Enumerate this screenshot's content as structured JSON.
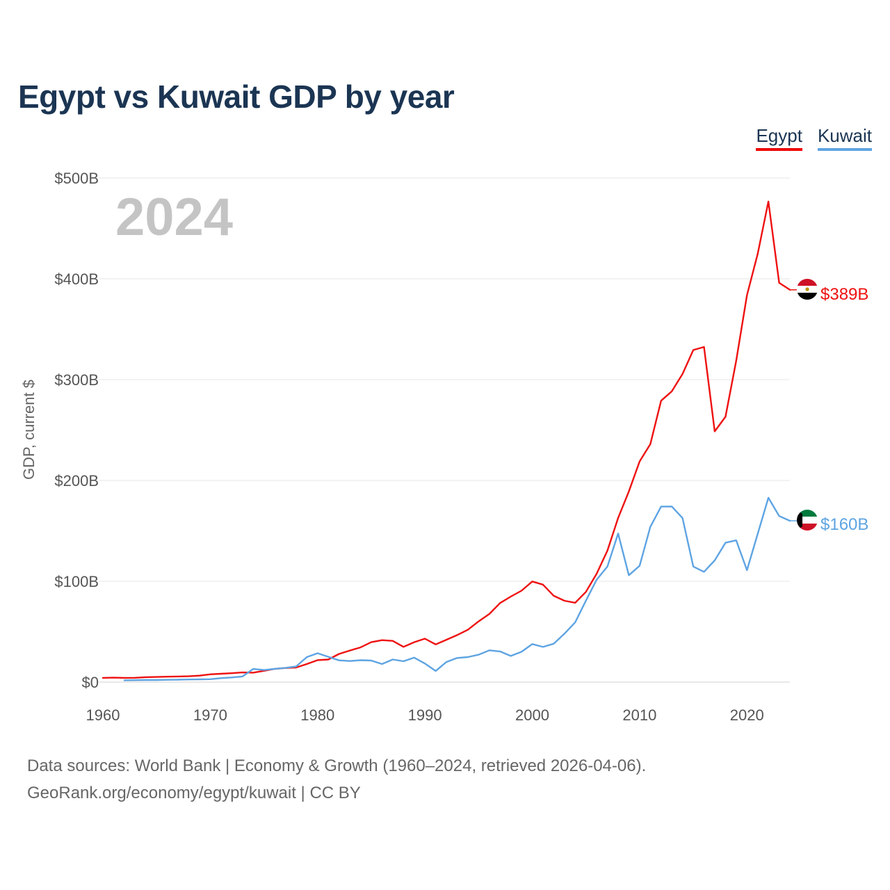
{
  "title": "Egypt vs Kuwait GDP by year",
  "legend": {
    "egypt_label": "Egypt",
    "kuwait_label": "Kuwait"
  },
  "colors": {
    "egypt": "#ee1111",
    "kuwait": "#5ea4e2",
    "grid": "#e6e6e6",
    "year_watermark": "#c4c4c4"
  },
  "source": {
    "line1": "Data sources: World Bank | Economy & Growth (1960–2024, retrieved 2026-04-06).",
    "line2": "GeoRank.org/economy/egypt/kuwait | CC BY"
  },
  "chart_data": {
    "type": "line",
    "title": "Egypt vs Kuwait GDP by year",
    "xlabel": "",
    "ylabel": "GDP, current $",
    "year_display": "2024",
    "xlim": [
      1960,
      2024
    ],
    "ylim": [
      0,
      500
    ],
    "y_unit": "billions USD",
    "x_ticks": [
      1960,
      1970,
      1980,
      1990,
      2000,
      2010,
      2020
    ],
    "x_tick_labels": [
      "1960",
      "1970",
      "1980",
      "1990",
      "2000",
      "2010",
      "2020"
    ],
    "y_ticks": [
      0,
      100,
      200,
      300,
      400,
      500
    ],
    "y_tick_labels": [
      "$0",
      "$100B",
      "$200B",
      "$300B",
      "$400B",
      "$500B"
    ],
    "grid": true,
    "legend_position": "top-right",
    "series": [
      {
        "name": "Egypt",
        "key": "egypt",
        "end_label": "$389B",
        "end_icon": "egypt-flag-icon",
        "x": [
          1960,
          1961,
          1962,
          1963,
          1964,
          1965,
          1966,
          1967,
          1968,
          1969,
          1970,
          1971,
          1972,
          1973,
          1974,
          1975,
          1976,
          1977,
          1978,
          1979,
          1980,
          1981,
          1982,
          1983,
          1984,
          1985,
          1986,
          1987,
          1988,
          1989,
          1990,
          1991,
          1992,
          1993,
          1994,
          1995,
          1996,
          1997,
          1998,
          1999,
          2000,
          2001,
          2002,
          2003,
          2004,
          2005,
          2006,
          2007,
          2008,
          2009,
          2010,
          2011,
          2012,
          2013,
          2014,
          2015,
          2016,
          2017,
          2018,
          2019,
          2020,
          2021,
          2022,
          2023,
          2024
        ],
        "values": [
          4.2,
          4.4,
          4.2,
          4.3,
          4.9,
          5.1,
          5.4,
          5.6,
          5.8,
          6.4,
          7.7,
          8.3,
          8.8,
          9.6,
          9.4,
          11.2,
          13.1,
          14.0,
          14.5,
          17.9,
          21.8,
          22.4,
          27.9,
          31.3,
          34.4,
          39.6,
          41.6,
          40.9,
          35.0,
          39.6,
          43.1,
          37.4,
          42.0,
          46.6,
          51.9,
          60.2,
          67.6,
          78.4,
          84.8,
          90.7,
          99.8,
          96.7,
          85.6,
          80.7,
          78.7,
          89.5,
          107.5,
          130.4,
          162.8,
          189.1,
          218.9,
          236.0,
          279.1,
          288.4,
          305.6,
          329.4,
          332.4,
          248.7,
          263.2,
          318.7,
          383.8,
          424.7,
          476.7,
          396.0,
          389.1
        ]
      },
      {
        "name": "Kuwait",
        "key": "kuwait",
        "end_label": "$160B",
        "end_icon": "kuwait-flag-icon",
        "x": [
          1962,
          1963,
          1964,
          1965,
          1966,
          1967,
          1968,
          1969,
          1970,
          1971,
          1972,
          1973,
          1974,
          1975,
          1976,
          1977,
          1978,
          1979,
          1980,
          1981,
          1982,
          1983,
          1984,
          1985,
          1986,
          1987,
          1988,
          1989,
          1990,
          1991,
          1992,
          1993,
          1994,
          1995,
          1996,
          1997,
          1998,
          1999,
          2000,
          2001,
          2002,
          2003,
          2004,
          2005,
          2006,
          2007,
          2008,
          2009,
          2010,
          2011,
          2012,
          2013,
          2014,
          2015,
          2016,
          2017,
          2018,
          2019,
          2020,
          2021,
          2022,
          2023,
          2024
        ],
        "values": [
          1.8,
          1.9,
          2.1,
          2.1,
          2.3,
          2.4,
          2.6,
          2.7,
          2.9,
          3.9,
          4.6,
          5.6,
          13.0,
          12.0,
          13.1,
          14.1,
          15.5,
          24.8,
          28.6,
          25.1,
          21.6,
          20.9,
          21.7,
          21.4,
          17.9,
          22.4,
          20.7,
          24.3,
          18.4,
          11.0,
          19.9,
          23.9,
          24.8,
          27.2,
          31.5,
          30.4,
          25.9,
          30.1,
          37.7,
          34.9,
          38.1,
          48.0,
          59.4,
          80.8,
          101.6,
          114.6,
          147.4,
          106.0,
          115.4,
          154.0,
          174.1,
          174.2,
          162.7,
          114.6,
          109.4,
          120.7,
          138.2,
          140.6,
          111.0,
          147.0,
          182.8,
          164.7,
          160.0
        ]
      }
    ]
  }
}
